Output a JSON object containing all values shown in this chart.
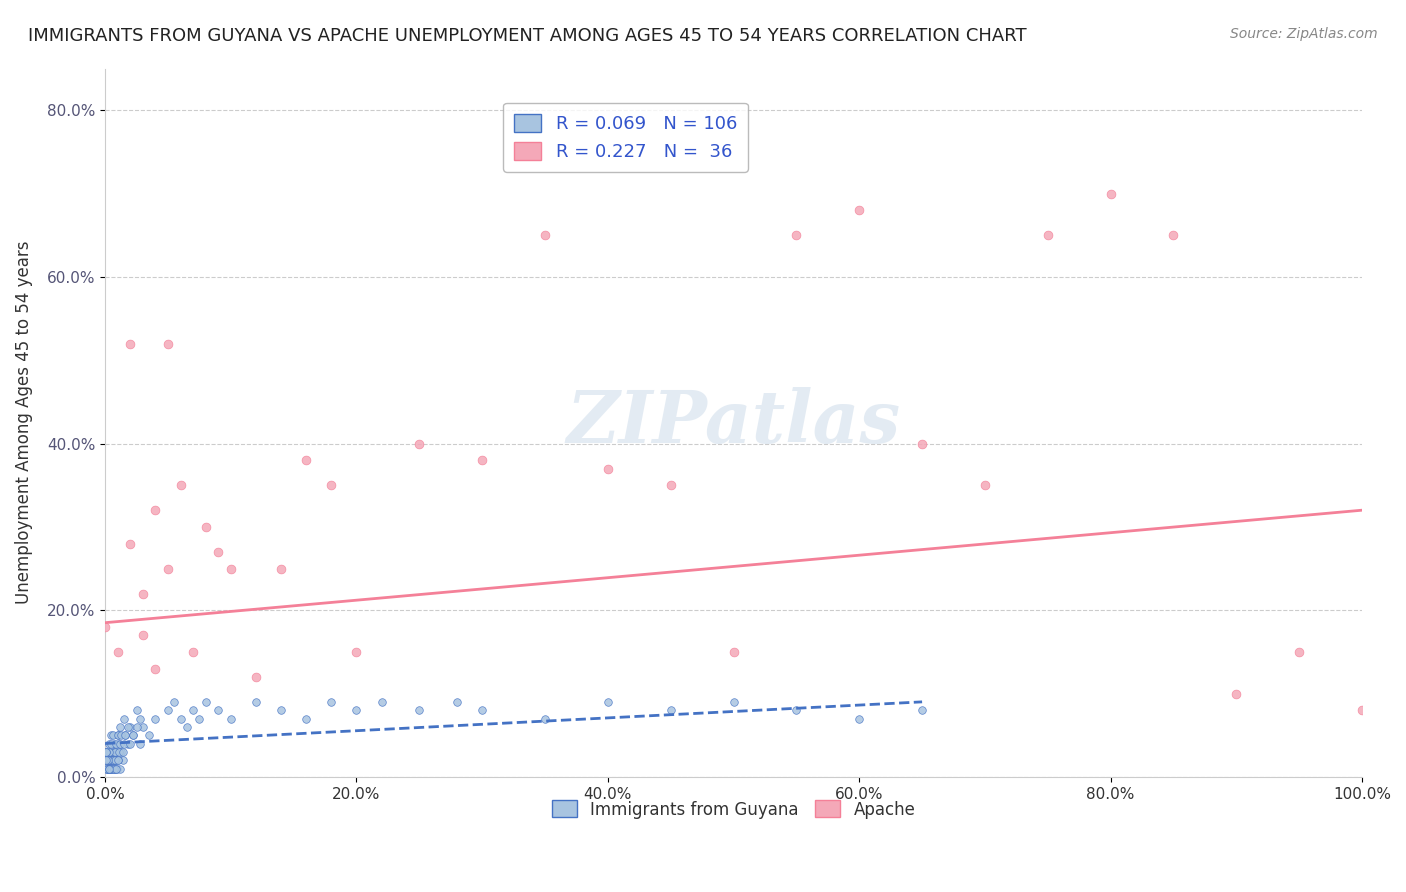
{
  "title": "IMMIGRANTS FROM GUYANA VS APACHE UNEMPLOYMENT AMONG AGES 45 TO 54 YEARS CORRELATION CHART",
  "source": "Source: ZipAtlas.com",
  "xlabel": "",
  "ylabel": "Unemployment Among Ages 45 to 54 years",
  "xlim": [
    0.0,
    1.0
  ],
  "ylim": [
    0.0,
    0.85
  ],
  "x_ticks": [
    0.0,
    0.2,
    0.4,
    0.6,
    0.8,
    1.0
  ],
  "x_tick_labels": [
    "0.0%",
    "20.0%",
    "40.0%",
    "60.0%",
    "80.0%",
    "100.0%"
  ],
  "y_ticks": [
    0.0,
    0.2,
    0.4,
    0.6,
    0.8
  ],
  "y_tick_labels": [
    "0.0%",
    "20.0%",
    "40.0%",
    "60.0%",
    "80.0%"
  ],
  "legend_labels": [
    "Immigrants from Guyana",
    "Apache"
  ],
  "legend_r": [
    "0.069",
    "0.227"
  ],
  "legend_n": [
    "106",
    "36"
  ],
  "guyana_color": "#a8c4e0",
  "apache_color": "#f4a8b8",
  "guyana_line_color": "#4472c4",
  "apache_line_color": "#f48098",
  "watermark": "ZIPatlas",
  "guyana_scatter_x": [
    0.0,
    0.001,
    0.002,
    0.003,
    0.004,
    0.005,
    0.006,
    0.007,
    0.008,
    0.009,
    0.01,
    0.011,
    0.012,
    0.013,
    0.014,
    0.015,
    0.016,
    0.018,
    0.02,
    0.022,
    0.025,
    0.028,
    0.03,
    0.035,
    0.04,
    0.05,
    0.055,
    0.06,
    0.065,
    0.07,
    0.075,
    0.08,
    0.09,
    0.1,
    0.12,
    0.14,
    0.16,
    0.18,
    0.2,
    0.22,
    0.25,
    0.28,
    0.3,
    0.35,
    0.4,
    0.45,
    0.5,
    0.55,
    0.6,
    0.65,
    0.002,
    0.003,
    0.004,
    0.005,
    0.006,
    0.007,
    0.008,
    0.009,
    0.01,
    0.011,
    0.012,
    0.013,
    0.014,
    0.015,
    0.016,
    0.018,
    0.02,
    0.022,
    0.025,
    0.028,
    0.001,
    0.002,
    0.003,
    0.004,
    0.005,
    0.006,
    0.007,
    0.003,
    0.004,
    0.002,
    0.001,
    0.0015,
    0.0025,
    0.0035,
    0.0045,
    0.0055,
    0.0065,
    0.0075,
    0.0085,
    0.0095,
    0.0105,
    0.0115,
    0.001,
    0.002,
    0.003,
    0.004,
    0.005,
    0.006,
    0.007,
    0.008,
    0.009,
    0.01,
    0.001,
    0.002,
    0.003,
    0.001
  ],
  "guyana_scatter_y": [
    0.02,
    0.03,
    0.01,
    0.04,
    0.02,
    0.05,
    0.03,
    0.04,
    0.02,
    0.03,
    0.05,
    0.04,
    0.06,
    0.03,
    0.02,
    0.07,
    0.05,
    0.04,
    0.06,
    0.05,
    0.08,
    0.07,
    0.06,
    0.05,
    0.07,
    0.08,
    0.09,
    0.07,
    0.06,
    0.08,
    0.07,
    0.09,
    0.08,
    0.07,
    0.09,
    0.08,
    0.07,
    0.09,
    0.08,
    0.09,
    0.08,
    0.09,
    0.08,
    0.07,
    0.09,
    0.08,
    0.09,
    0.08,
    0.07,
    0.08,
    0.01,
    0.02,
    0.03,
    0.04,
    0.05,
    0.02,
    0.03,
    0.04,
    0.05,
    0.03,
    0.04,
    0.05,
    0.03,
    0.04,
    0.05,
    0.06,
    0.04,
    0.05,
    0.06,
    0.04,
    0.01,
    0.02,
    0.01,
    0.02,
    0.01,
    0.02,
    0.01,
    0.03,
    0.02,
    0.01,
    0.02,
    0.01,
    0.02,
    0.01,
    0.02,
    0.01,
    0.02,
    0.01,
    0.02,
    0.01,
    0.02,
    0.01,
    0.03,
    0.02,
    0.01,
    0.02,
    0.01,
    0.02,
    0.01,
    0.02,
    0.01,
    0.02,
    0.03,
    0.02,
    0.01,
    0.02
  ],
  "apache_scatter_x": [
    0.0,
    0.01,
    0.02,
    0.03,
    0.04,
    0.05,
    0.06,
    0.07,
    0.08,
    0.09,
    0.1,
    0.12,
    0.14,
    0.16,
    0.18,
    0.2,
    0.25,
    0.3,
    0.35,
    0.4,
    0.45,
    0.5,
    0.55,
    0.6,
    0.65,
    0.7,
    0.75,
    0.8,
    0.85,
    0.9,
    0.95,
    1.0,
    0.02,
    0.03,
    0.04,
    0.05
  ],
  "apache_scatter_y": [
    0.18,
    0.15,
    0.52,
    0.22,
    0.32,
    0.52,
    0.35,
    0.15,
    0.3,
    0.27,
    0.25,
    0.12,
    0.25,
    0.38,
    0.35,
    0.15,
    0.4,
    0.38,
    0.65,
    0.37,
    0.35,
    0.15,
    0.65,
    0.68,
    0.4,
    0.35,
    0.65,
    0.7,
    0.65,
    0.1,
    0.15,
    0.08,
    0.28,
    0.17,
    0.13,
    0.25
  ],
  "guyana_trend_x": [
    0.0,
    0.65
  ],
  "guyana_trend_y": [
    0.04,
    0.09
  ],
  "apache_trend_x": [
    0.0,
    1.0
  ],
  "apache_trend_y": [
    0.185,
    0.32
  ],
  "background_color": "#ffffff",
  "grid_color": "#cccccc"
}
